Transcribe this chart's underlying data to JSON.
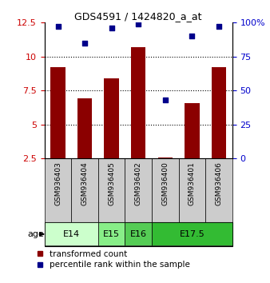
{
  "title": "GDS4591 / 1424820_a_at",
  "samples": [
    "GSM936403",
    "GSM936404",
    "GSM936405",
    "GSM936402",
    "GSM936400",
    "GSM936401",
    "GSM936406"
  ],
  "transformed_counts": [
    9.2,
    6.9,
    8.4,
    10.7,
    2.55,
    6.6,
    9.2
  ],
  "percentile_ranks": [
    97,
    85,
    96,
    99,
    43,
    90,
    97
  ],
  "ylim_left": [
    2.5,
    12.5
  ],
  "ylim_right": [
    0,
    100
  ],
  "yticks_left": [
    2.5,
    5.0,
    7.5,
    10.0,
    12.5
  ],
  "ytick_labels_left": [
    "2.5",
    "5",
    "7.5",
    "10",
    "12.5"
  ],
  "yticks_right": [
    0,
    25,
    50,
    75,
    100
  ],
  "ytick_labels_right": [
    "0",
    "25",
    "50",
    "75",
    "100%"
  ],
  "bar_color": "#8B0000",
  "dot_color": "#00008B",
  "bar_bottom": 2.5,
  "age_groups": [
    {
      "label": "E14",
      "start": 0,
      "end": 1,
      "color": "#ccffcc"
    },
    {
      "label": "E15",
      "start": 2,
      "end": 2,
      "color": "#88ee88"
    },
    {
      "label": "E16",
      "start": 3,
      "end": 3,
      "color": "#55cc55"
    },
    {
      "label": "E17.5",
      "start": 4,
      "end": 6,
      "color": "#33bb33"
    }
  ],
  "sample_box_color": "#cccccc",
  "grid_yticks": [
    5.0,
    7.5,
    10.0
  ],
  "legend_labels": [
    "transformed count",
    "percentile rank within the sample"
  ]
}
